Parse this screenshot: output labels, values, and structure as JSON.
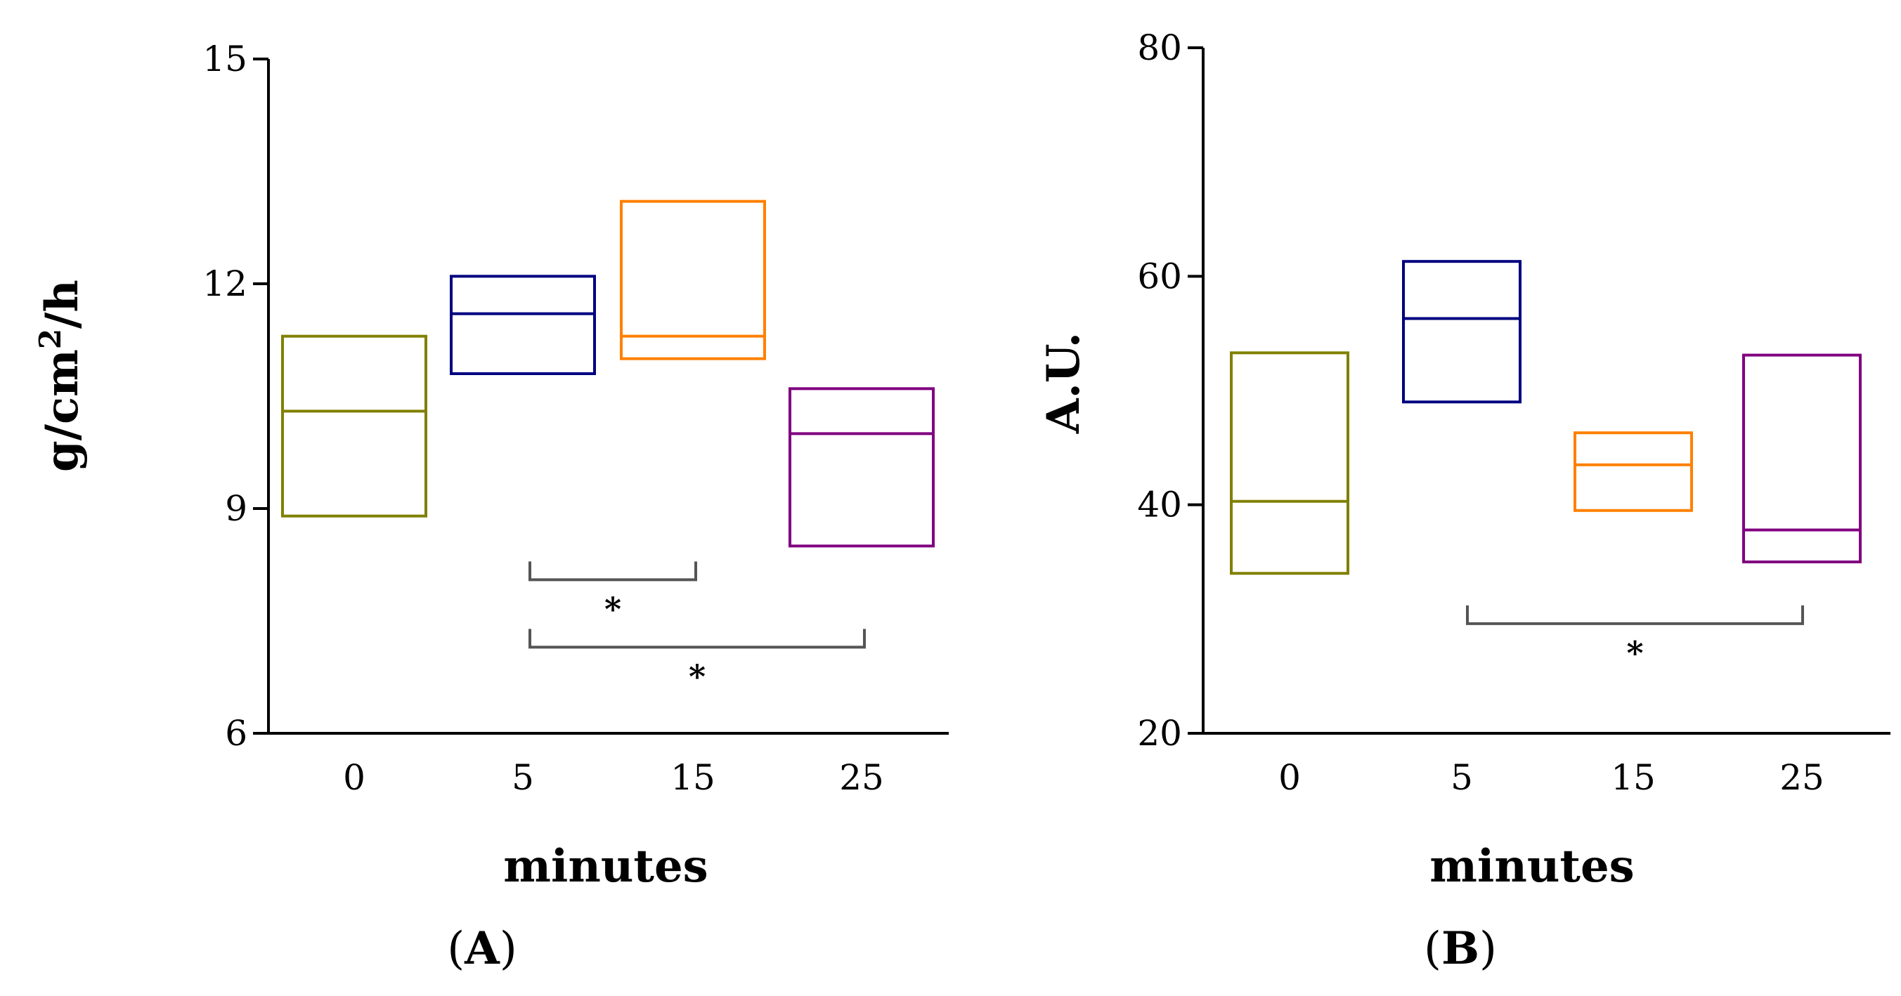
{
  "chart_data": [
    {
      "panel": "A",
      "panel_label_open": "(",
      "panel_label_letter": "A",
      "panel_label_close": ")",
      "type": "box",
      "xlabel": "minutes",
      "ylabel": "g/cm",
      "ylabel_superscript": "2",
      "ylabel_suffix": "/h",
      "ylim": [
        6,
        15
      ],
      "yticks": [
        6,
        9,
        12,
        15
      ],
      "categories": [
        "0",
        "5",
        "15",
        "25"
      ],
      "boxes": [
        {
          "category": "0",
          "low": 8.9,
          "median": 10.3,
          "high": 11.3,
          "color": "#808000"
        },
        {
          "category": "5",
          "low": 10.8,
          "median": 11.6,
          "high": 12.1,
          "color": "#000080"
        },
        {
          "category": "15",
          "low": 11.0,
          "median": 11.3,
          "high": 13.1,
          "color": "#FF8000"
        },
        {
          "category": "25",
          "low": 8.5,
          "median": 10.0,
          "high": 10.6,
          "color": "#800080"
        }
      ],
      "significance": [
        {
          "from": "5",
          "to": "15",
          "label": "*",
          "level": 8.05
        },
        {
          "from": "5",
          "to": "25",
          "label": "*",
          "level": 7.15
        }
      ]
    },
    {
      "panel": "B",
      "panel_label_open": "(",
      "panel_label_letter": "B",
      "panel_label_close": ")",
      "type": "box",
      "xlabel": "minutes",
      "ylabel": "A.U.",
      "ylim": [
        20,
        80
      ],
      "yticks": [
        20,
        40,
        60,
        80
      ],
      "categories": [
        "0",
        "5",
        "15",
        "25"
      ],
      "boxes": [
        {
          "category": "0",
          "low": 34.0,
          "median": 40.3,
          "high": 53.3,
          "color": "#808000"
        },
        {
          "category": "5",
          "low": 49.0,
          "median": 56.3,
          "high": 61.3,
          "color": "#000080"
        },
        {
          "category": "15",
          "low": 39.5,
          "median": 43.5,
          "high": 46.3,
          "color": "#FF8000"
        },
        {
          "category": "25",
          "low": 35.0,
          "median": 37.8,
          "high": 53.1,
          "color": "#800080"
        }
      ],
      "significance": [
        {
          "from": "5",
          "to": "25",
          "label": "*",
          "level": 29.6
        }
      ]
    }
  ]
}
